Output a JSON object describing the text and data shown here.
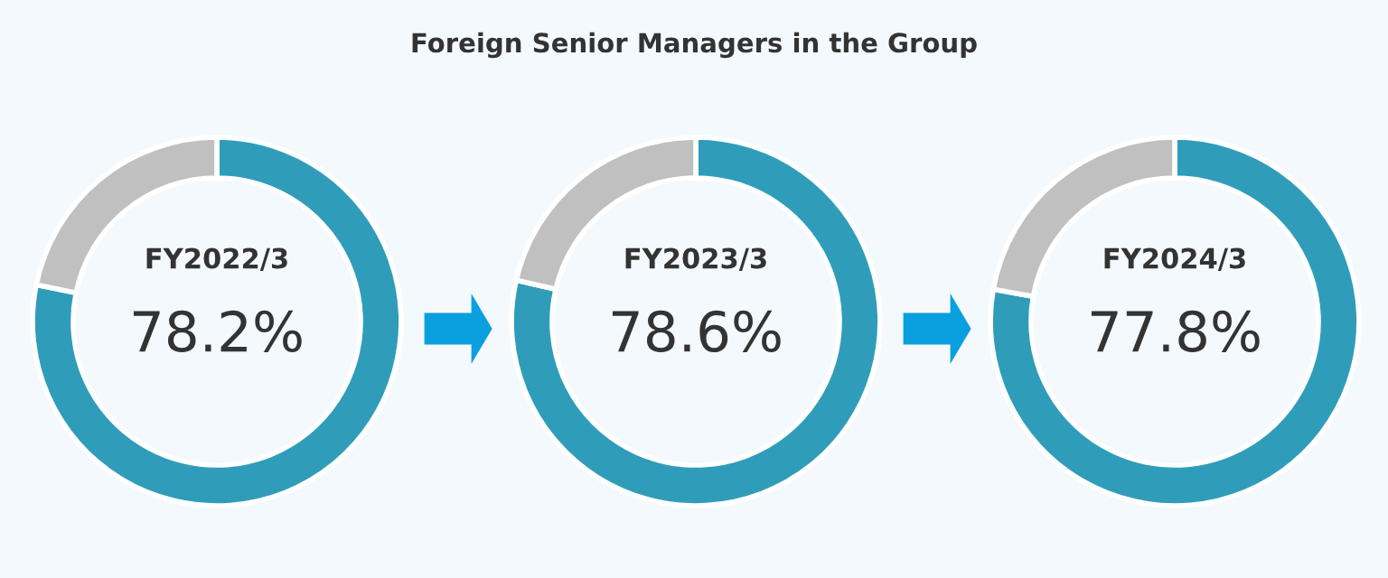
{
  "chart_data": [
    {
      "type": "other",
      "title": "Foreign Senior Managers in the Group"
    },
    {
      "type": "donut",
      "subtitle": "FY2022/3",
      "categories": [
        null,
        null
      ],
      "values": [
        78.2,
        21.8
      ],
      "colors": [
        "#2f9dba",
        "#c0c0c0"
      ],
      "value_labels": [
        "78.2%",
        null
      ]
    },
    {
      "type": "donut",
      "subtitle": "FY2023/3",
      "categories": [
        null,
        null
      ],
      "values": [
        78.6,
        21.4
      ],
      "colors": [
        "#2f9dba",
        "#c0c0c0"
      ],
      "value_labels": [
        "78.6%",
        null
      ]
    },
    {
      "type": "donut",
      "subtitle": "FY2024/3",
      "categories": [
        null,
        null
      ],
      "values": [
        77.8,
        22.2
      ],
      "colors": [
        "#2f9dba",
        "#c0c0c0"
      ],
      "value_labels": [
        "77.8%",
        null
      ]
    }
  ]
}
